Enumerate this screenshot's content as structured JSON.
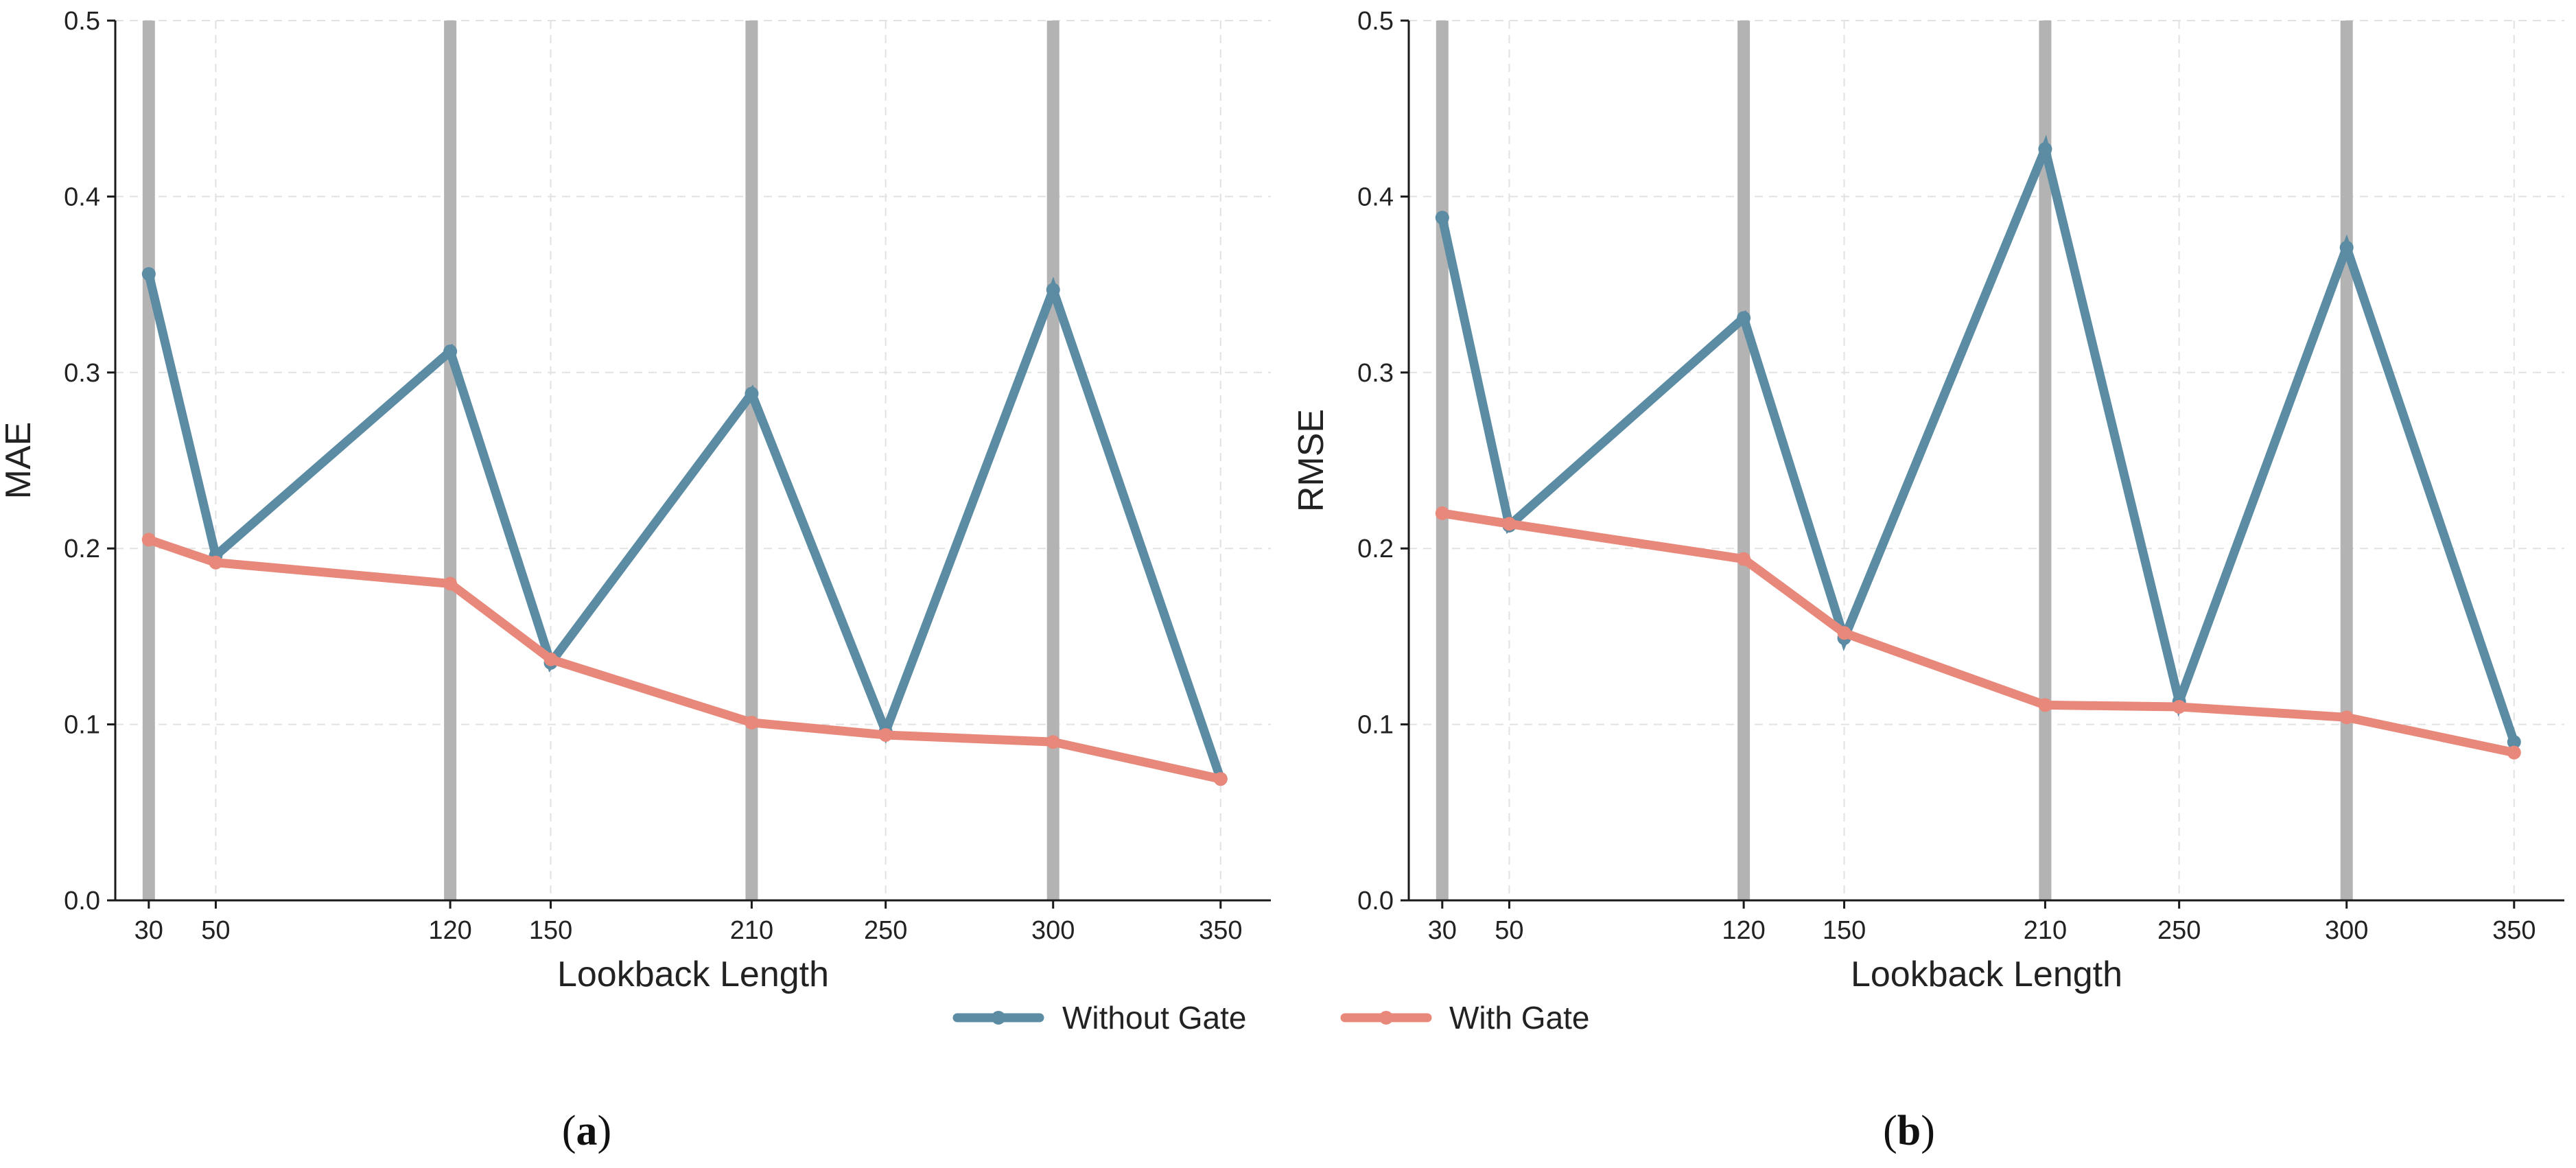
{
  "chart_data": [
    {
      "id": "a",
      "type": "line",
      "panel_label_open": "(",
      "panel_label_letter": "a",
      "panel_label_close": ")",
      "xlabel": "Lookback Length",
      "ylabel": "MAE",
      "x": [
        30,
        50,
        120,
        150,
        210,
        250,
        300,
        350
      ],
      "xlim": [
        20,
        365
      ],
      "ylim": [
        0.0,
        0.5
      ],
      "yticks": [
        "0.0",
        "0.1",
        "0.2",
        "0.3",
        "0.4",
        "0.5"
      ],
      "highlight_x": [
        30,
        120,
        210,
        300
      ],
      "grid": true,
      "series": [
        {
          "name": "Without Gate",
          "color": "#5b8ca3",
          "values": [
            0.356,
            0.196,
            0.312,
            0.135,
            0.288,
            0.096,
            0.347,
            0.069
          ]
        },
        {
          "name": "With Gate",
          "color": "#e8887a",
          "values": [
            0.205,
            0.192,
            0.18,
            0.137,
            0.101,
            0.094,
            0.09,
            0.069
          ]
        }
      ]
    },
    {
      "id": "b",
      "type": "line",
      "panel_label_open": "(",
      "panel_label_letter": "b",
      "panel_label_close": ")",
      "xlabel": "Lookback Length",
      "ylabel": "RMSE",
      "x": [
        30,
        50,
        120,
        150,
        210,
        250,
        300,
        350
      ],
      "xlim": [
        20,
        365
      ],
      "ylim": [
        0.0,
        0.5
      ],
      "yticks": [
        "0.0",
        "0.1",
        "0.2",
        "0.3",
        "0.4",
        "0.5"
      ],
      "highlight_x": [
        30,
        120,
        210,
        300
      ],
      "grid": true,
      "series": [
        {
          "name": "Without Gate",
          "color": "#5b8ca3",
          "values": [
            0.388,
            0.213,
            0.331,
            0.149,
            0.427,
            0.113,
            0.371,
            0.09
          ]
        },
        {
          "name": "With Gate",
          "color": "#e8887a",
          "values": [
            0.22,
            0.214,
            0.194,
            0.152,
            0.111,
            0.11,
            0.104,
            0.084
          ]
        }
      ]
    }
  ],
  "legend": {
    "items": [
      {
        "label": "Without Gate",
        "color": "#5b8ca3"
      },
      {
        "label": "With Gate",
        "color": "#e8887a"
      }
    ]
  }
}
